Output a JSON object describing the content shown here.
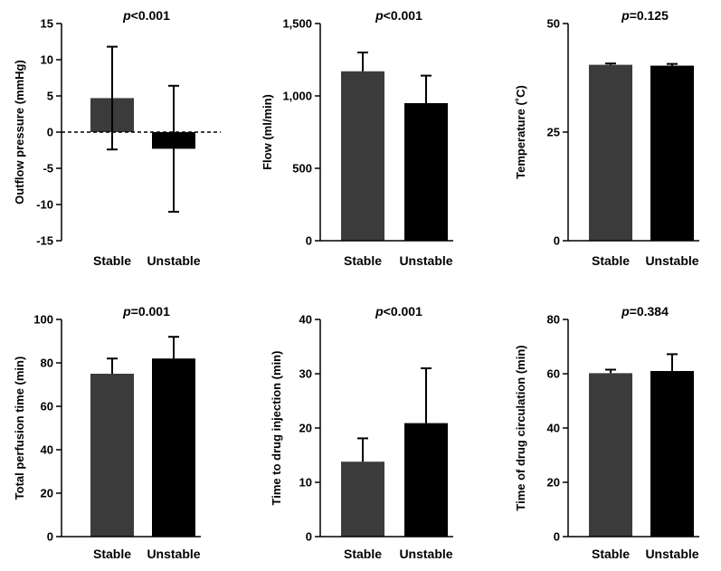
{
  "chart_data": [
    {
      "type": "bar",
      "title": "p<0.001",
      "p_symbol": "p",
      "p_rest": "<0.001",
      "ylabel": "Outflow pressure (mmHg)",
      "categories": [
        "Stable",
        "Unstable"
      ],
      "values": [
        4.7,
        -2.3
      ],
      "errors": [
        7.1,
        8.7
      ],
      "error_direction": [
        "both",
        "both"
      ],
      "ylim": [
        -15,
        15
      ],
      "yticks": [
        -15,
        -10,
        -5,
        0,
        5,
        10,
        15
      ],
      "ytick_labels": [
        "-15",
        "-10",
        "-5",
        "0",
        "5",
        "10",
        "15"
      ],
      "zero_line": "dashed"
    },
    {
      "type": "bar",
      "title": "p<0.001",
      "p_symbol": "p",
      "p_rest": "<0.001",
      "ylabel": "Flow (ml/min)",
      "categories": [
        "Stable",
        "Unstable"
      ],
      "values": [
        1170,
        950
      ],
      "errors": [
        130,
        190
      ],
      "error_direction": [
        "up",
        "up"
      ],
      "ylim": [
        0,
        1500
      ],
      "yticks": [
        0,
        500,
        1000,
        1500
      ],
      "ytick_labels": [
        "0",
        "500",
        "1,000",
        "1,500"
      ]
    },
    {
      "type": "bar",
      "title": "p=0.125",
      "p_symbol": "p",
      "p_rest": "=0.125",
      "ylabel": "Temperature (˚C)",
      "categories": [
        "Stable",
        "Unstable"
      ],
      "values": [
        40.5,
        40.3
      ],
      "errors": [
        0.3,
        0.4
      ],
      "error_direction": [
        "up",
        "up"
      ],
      "ylim": [
        0,
        50
      ],
      "yticks": [
        0,
        25,
        50
      ],
      "ytick_labels": [
        "0",
        "25",
        "50"
      ]
    },
    {
      "type": "bar",
      "title": "p=0.001",
      "p_symbol": "p",
      "p_rest": "=0.001",
      "ylabel": "Total perfusion time (min)",
      "categories": [
        "Stable",
        "Unstable"
      ],
      "values": [
        75,
        82
      ],
      "errors": [
        7,
        10
      ],
      "error_direction": [
        "up",
        "up"
      ],
      "ylim": [
        0,
        100
      ],
      "yticks": [
        0,
        20,
        40,
        60,
        80,
        100
      ],
      "ytick_labels": [
        "0",
        "20",
        "40",
        "60",
        "80",
        "100"
      ]
    },
    {
      "type": "bar",
      "title": "p<0.001",
      "p_symbol": "p",
      "p_rest": "<0.001",
      "ylabel": "Time to drug injection (min)",
      "categories": [
        "Stable",
        "Unstable"
      ],
      "values": [
        13.8,
        20.9
      ],
      "errors": [
        4.3,
        10.1
      ],
      "error_direction": [
        "up",
        "up"
      ],
      "ylim": [
        0,
        40
      ],
      "yticks": [
        0,
        10,
        20,
        30,
        40
      ],
      "ytick_labels": [
        "0",
        "10",
        "20",
        "30",
        "40"
      ]
    },
    {
      "type": "bar",
      "title": "p=0.384",
      "p_symbol": "p",
      "p_rest": "=0.384",
      "ylabel": "Time of drug circulation (min)",
      "categories": [
        "Stable",
        "Unstable"
      ],
      "values": [
        60.2,
        61.0
      ],
      "errors": [
        1.3,
        6.2
      ],
      "error_direction": [
        "up",
        "up"
      ],
      "ylim": [
        0,
        80
      ],
      "yticks": [
        0,
        20,
        40,
        60,
        80
      ],
      "ytick_labels": [
        "0",
        "20",
        "40",
        "60",
        "80"
      ]
    }
  ],
  "colors": {
    "stable_bar": "#3b3b3b",
    "unstable_bar": "#000000",
    "axis": "#000000"
  }
}
